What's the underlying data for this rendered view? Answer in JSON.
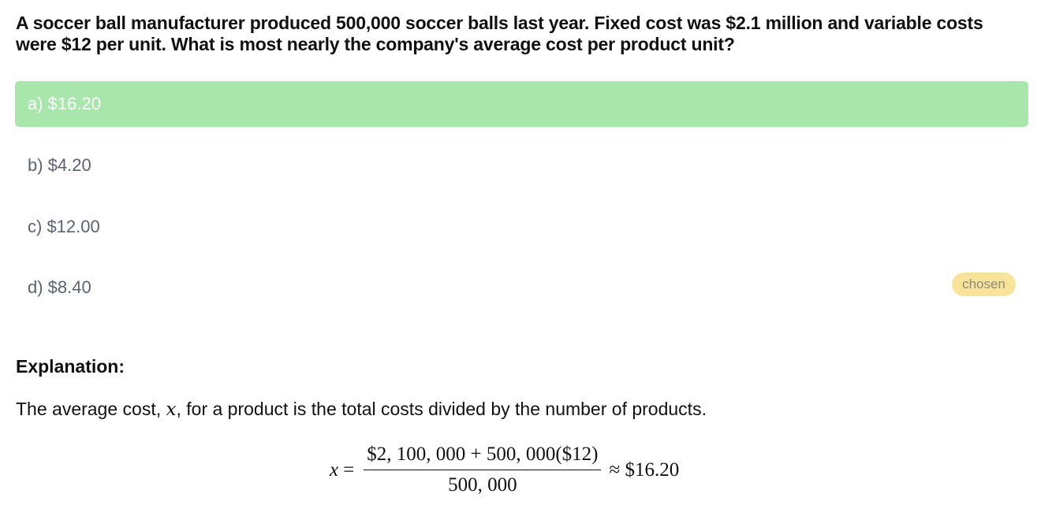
{
  "question": {
    "line1": "A soccer ball manufacturer produced 500,000 soccer balls last year. Fixed cost was $2.1 million and variable costs",
    "line2": "were $12 per unit. What is most nearly the company's average cost per product unit?"
  },
  "options": [
    {
      "label": "a) $16.20",
      "state": "correct"
    },
    {
      "label": "b) $4.20",
      "state": "neutral"
    },
    {
      "label": "c) $12.00",
      "state": "neutral"
    },
    {
      "label": "d) $8.40",
      "state": "chosen"
    }
  ],
  "chosen_badge": "chosen",
  "explanation": {
    "heading": "Explanation:",
    "text_before": "The average cost, ",
    "variable": "x",
    "text_after": ", for a product is the total costs divided by the number of products.",
    "formula": {
      "lhs": "x",
      "equals": "=",
      "numerator": "$2, 100, 000 + 500, 000($12)",
      "denominator": "500, 000",
      "approx": "≈ $16.20"
    }
  },
  "colors": {
    "correct_bg": "#a8e6ab",
    "chosen_badge_bg": "#f7e49a",
    "option_text": "#5b6270"
  }
}
